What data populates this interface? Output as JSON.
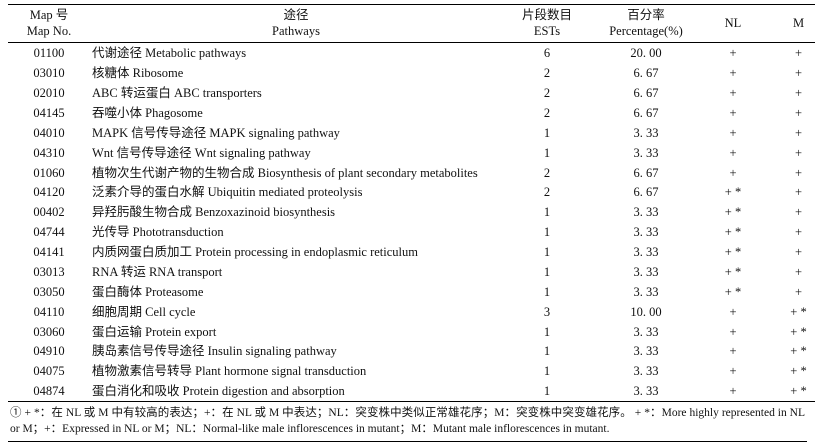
{
  "table": {
    "headers": {
      "map_no_zh": "Map 号",
      "map_no_en": "Map No.",
      "pathways_zh": "途径",
      "pathways_en": "Pathways",
      "ests_zh": "片段数目",
      "ests_en": "ESTs",
      "percentage_zh": "百分率",
      "percentage_en": "Percentage(%)",
      "nl": "NL",
      "m": "M"
    },
    "rows": [
      {
        "map_no": "01100",
        "pathway": "代谢途径 Metabolic pathways",
        "ests": "6",
        "percentage": "20. 00",
        "nl": "+",
        "m": "+"
      },
      {
        "map_no": "03010",
        "pathway": "核糖体 Ribosome",
        "ests": "2",
        "percentage": "6. 67",
        "nl": "+",
        "m": "+"
      },
      {
        "map_no": "02010",
        "pathway": "ABC 转运蛋白 ABC transporters",
        "ests": "2",
        "percentage": "6. 67",
        "nl": "+",
        "m": "+"
      },
      {
        "map_no": "04145",
        "pathway": "吞噬小体 Phagosome",
        "ests": "2",
        "percentage": "6. 67",
        "nl": "+",
        "m": "+"
      },
      {
        "map_no": "04010",
        "pathway": "MAPK 信号传导途径 MAPK signaling pathway",
        "ests": "1",
        "percentage": "3. 33",
        "nl": "+",
        "m": "+"
      },
      {
        "map_no": "04310",
        "pathway": "Wnt 信号传导途径 Wnt signaling pathway",
        "ests": "1",
        "percentage": "3. 33",
        "nl": "+",
        "m": "+"
      },
      {
        "map_no": "01060",
        "pathway": "植物次生代谢产物的生物合成 Biosynthesis of plant secondary metabolites",
        "ests": "2",
        "percentage": "6. 67",
        "nl": "+",
        "m": "+"
      },
      {
        "map_no": "04120",
        "pathway": "泛素介导的蛋白水解 Ubiquitin mediated proteolysis",
        "ests": "2",
        "percentage": "6. 67",
        "nl": "+ *",
        "m": "+"
      },
      {
        "map_no": "00402",
        "pathway": "异羟肟酸生物合成 Benzoxazinoid biosynthesis",
        "ests": "1",
        "percentage": "3. 33",
        "nl": "+ *",
        "m": "+"
      },
      {
        "map_no": "04744",
        "pathway": "光传导 Phototransduction",
        "ests": "1",
        "percentage": "3. 33",
        "nl": "+ *",
        "m": "+"
      },
      {
        "map_no": "04141",
        "pathway": "内质网蛋白质加工 Protein processing in endoplasmic reticulum",
        "ests": "1",
        "percentage": "3. 33",
        "nl": "+ *",
        "m": "+"
      },
      {
        "map_no": "03013",
        "pathway": "RNA 转运 RNA transport",
        "ests": "1",
        "percentage": "3. 33",
        "nl": "+ *",
        "m": "+"
      },
      {
        "map_no": "03050",
        "pathway": "蛋白酶体 Proteasome",
        "ests": "1",
        "percentage": "3. 33",
        "nl": "+ *",
        "m": "+"
      },
      {
        "map_no": "04110",
        "pathway": "细胞周期 Cell cycle",
        "ests": "3",
        "percentage": "10. 00",
        "nl": "+",
        "m": "+ *"
      },
      {
        "map_no": "03060",
        "pathway": "蛋白运输 Protein export",
        "ests": "1",
        "percentage": "3. 33",
        "nl": "+",
        "m": "+ *"
      },
      {
        "map_no": "04910",
        "pathway": "胰岛素信号传导途径 Insulin signaling pathway",
        "ests": "1",
        "percentage": "3. 33",
        "nl": "+",
        "m": "+ *"
      },
      {
        "map_no": "04075",
        "pathway": "植物激素信号转导 Plant hormone signal transduction",
        "ests": "1",
        "percentage": "3. 33",
        "nl": "+",
        "m": "+ *"
      },
      {
        "map_no": "04874",
        "pathway": "蛋白消化和吸收 Protein digestion and absorption",
        "ests": "1",
        "percentage": "3. 33",
        "nl": "+",
        "m": "+ *"
      }
    ],
    "footnote": "① + *：在 NL 或 M 中有较高的表达；+：在 NL 或 M 中表达；NL：突变株中类似正常雄花序；M：突变株中突变雄花序。 + *：More highly represented in NL or M；+：Expressed in NL or M；NL：Normal-like male inflorescences in mutant；M：Mutant male inflorescences in mutant."
  }
}
